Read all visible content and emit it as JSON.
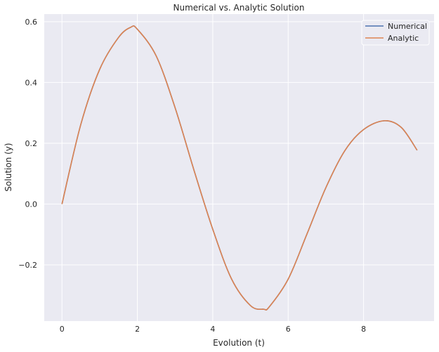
{
  "chart_data": {
    "type": "line",
    "title": "Numerical vs. Analytic Solution",
    "xlabel": "Evolution (t)",
    "ylabel": "Solution (y)",
    "xlim": [
      -0.47,
      9.87
    ],
    "ylim": [
      -0.385,
      0.625
    ],
    "xticks": [
      0,
      2,
      4,
      6,
      8
    ],
    "yticks": [
      -0.2,
      0.0,
      0.2,
      0.4,
      0.6
    ],
    "xtick_labels": [
      "0",
      "2",
      "4",
      "6",
      "8"
    ],
    "ytick_labels": [
      "−0.2",
      "0.0",
      "0.2",
      "0.4",
      "0.6"
    ],
    "grid": true,
    "legend_position": "top-right",
    "x": [
      0,
      0.5,
      1.0,
      1.5,
      1.83,
      2.0,
      2.5,
      3.0,
      3.5,
      4.0,
      4.5,
      5.0,
      5.35,
      5.5,
      6.0,
      6.5,
      7.0,
      7.5,
      8.0,
      8.55,
      9.0,
      9.42
    ],
    "series": [
      {
        "name": "Numerical",
        "color": "#4c72b0",
        "values": [
          0,
          0.262,
          0.443,
          0.548,
          0.582,
          0.575,
          0.487,
          0.317,
          0.112,
          -0.083,
          -0.247,
          -0.334,
          -0.346,
          -0.338,
          -0.247,
          -0.098,
          0.054,
          0.175,
          0.245,
          0.274,
          0.252,
          0.177
        ]
      },
      {
        "name": "Analytic",
        "color": "#dd8452",
        "values": [
          0,
          0.262,
          0.443,
          0.548,
          0.582,
          0.575,
          0.487,
          0.317,
          0.112,
          -0.083,
          -0.247,
          -0.334,
          -0.346,
          -0.338,
          -0.247,
          -0.098,
          0.054,
          0.175,
          0.245,
          0.274,
          0.252,
          0.177
        ]
      }
    ]
  }
}
